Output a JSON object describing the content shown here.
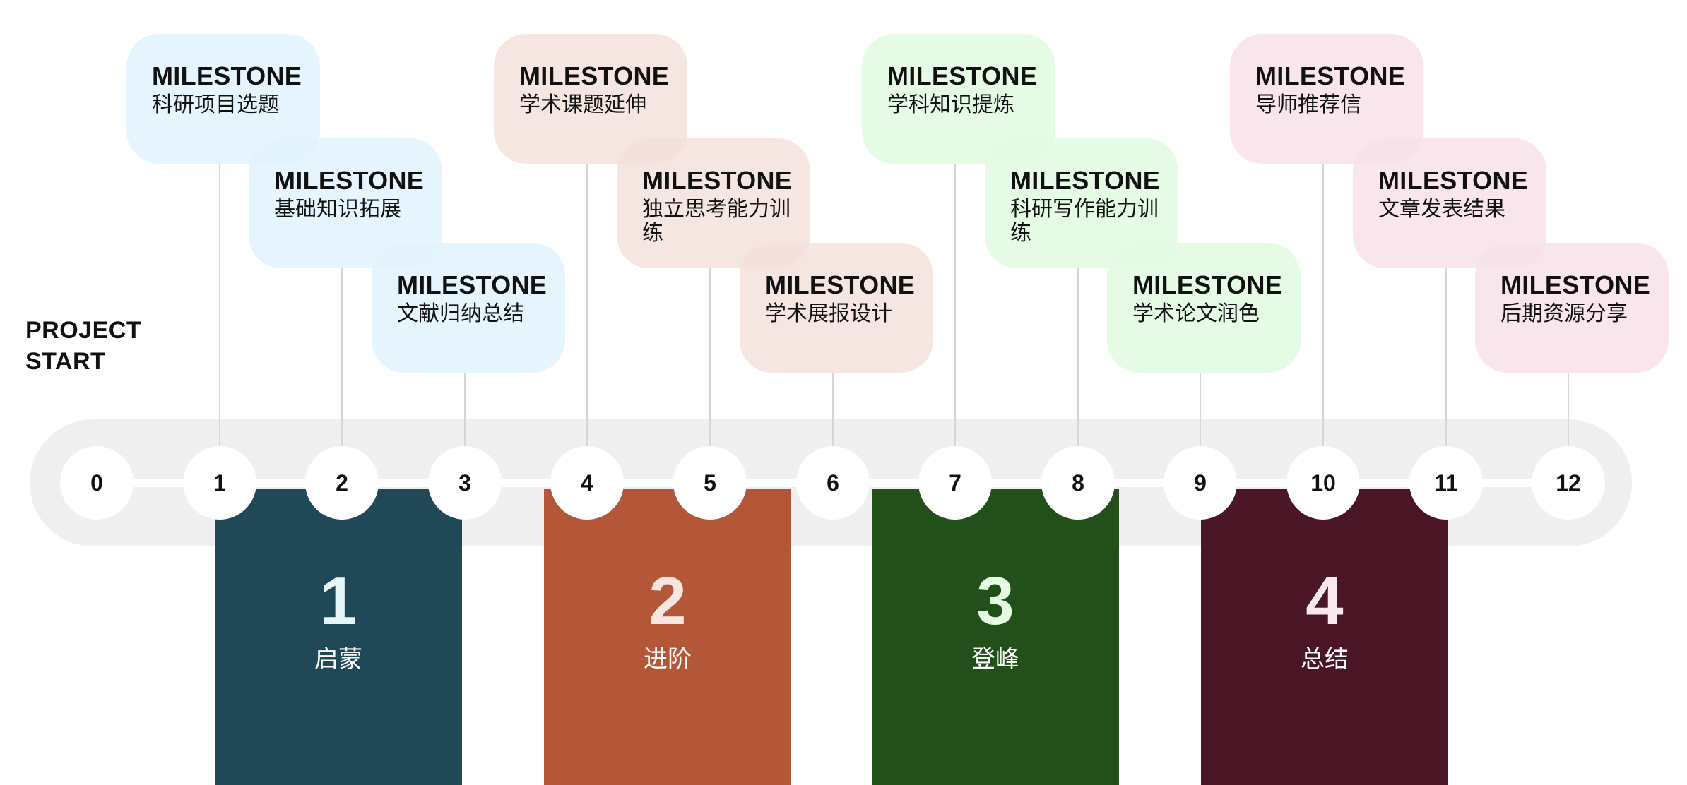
{
  "project_start": "PROJECT\nSTART",
  "steps": [
    "0",
    "1",
    "2",
    "3",
    "4",
    "5",
    "6",
    "7",
    "8",
    "9",
    "10",
    "11",
    "12"
  ],
  "milestones": [
    {
      "title": "MILESTONE",
      "desc": "科研项目选题",
      "step": 1,
      "phase": 1
    },
    {
      "title": "MILESTONE",
      "desc": "基础知识拓展",
      "step": 2,
      "phase": 1
    },
    {
      "title": "MILESTONE",
      "desc": "文献归纳总结",
      "step": 3,
      "phase": 1
    },
    {
      "title": "MILESTONE",
      "desc": "学术课题延伸",
      "step": 4,
      "phase": 2
    },
    {
      "title": "MILESTONE",
      "desc": "独立思考能力训练",
      "step": 5,
      "phase": 2
    },
    {
      "title": "MILESTONE",
      "desc": "学术展报设计",
      "step": 6,
      "phase": 2
    },
    {
      "title": "MILESTONE",
      "desc": "学科知识提炼",
      "step": 7,
      "phase": 3
    },
    {
      "title": "MILESTONE",
      "desc": "科研写作能力训练",
      "step": 8,
      "phase": 3
    },
    {
      "title": "MILESTONE",
      "desc": "学术论文润色",
      "step": 9,
      "phase": 3
    },
    {
      "title": "MILESTONE",
      "desc": "导师推荐信",
      "step": 10,
      "phase": 4
    },
    {
      "title": "MILESTONE",
      "desc": "文章发表结果",
      "step": 11,
      "phase": 4
    },
    {
      "title": "MILESTONE",
      "desc": "后期资源分享",
      "step": 12,
      "phase": 4
    }
  ],
  "phases": [
    {
      "number": "1",
      "label": "启蒙",
      "color": "#204856",
      "text_color": "#e4f6f7"
    },
    {
      "number": "2",
      "label": "进阶",
      "color": "#b45638",
      "text_color": "#f7e6df"
    },
    {
      "number": "3",
      "label": "登峰",
      "color": "#234f1a",
      "text_color": "#e6fbe3"
    },
    {
      "number": "4",
      "label": "总结",
      "color": "#4a1625",
      "text_color": "#fbe7ee"
    }
  ]
}
